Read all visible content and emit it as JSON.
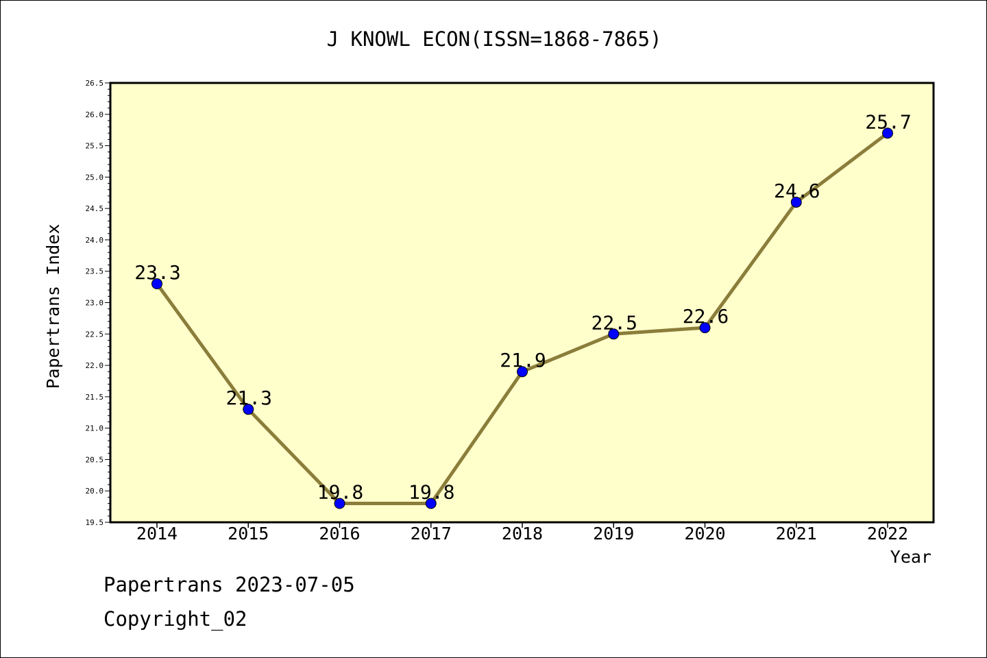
{
  "chart_data": {
    "type": "line",
    "title": "J KNOWL ECON(ISSN=1868-7865)",
    "xlabel": "Year",
    "ylabel": "Papertrans Index",
    "x": [
      "2014",
      "2015",
      "2016",
      "2017",
      "2018",
      "2019",
      "2020",
      "2021",
      "2022"
    ],
    "series": [
      {
        "values": [
          23.3,
          21.3,
          19.8,
          19.8,
          21.9,
          22.5,
          22.6,
          24.6,
          25.7
        ]
      }
    ],
    "data_labels": [
      "23.3",
      "21.3",
      "19.8",
      "19.8",
      "21.9",
      "22.5",
      "22.6",
      "24.6",
      "25.7"
    ],
    "ylim": [
      19.5,
      26.5
    ],
    "y_ticks": [
      "19.5",
      "20.0",
      "20.5",
      "21.0",
      "21.5",
      "22.0",
      "22.5",
      "23.0",
      "23.5",
      "24.0",
      "24.5",
      "25.0",
      "25.5",
      "26.0",
      "26.5"
    ],
    "grid": false,
    "colors": {
      "plot_bg": "#ffffcc",
      "line": "#8b7d3a",
      "marker": "#0000ff"
    }
  },
  "footer": {
    "line1": "Papertrans 2023-07-05",
    "line2": "Copyright_02"
  }
}
